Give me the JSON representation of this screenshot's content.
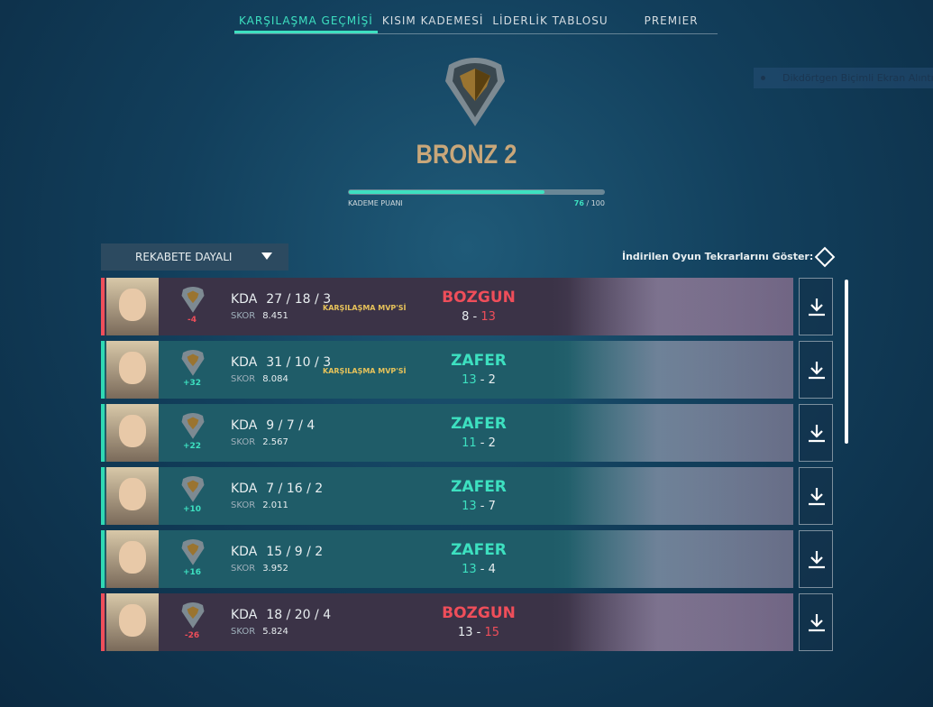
{
  "tabs": [
    {
      "label": "KARŞILAŞMA GEÇMİŞİ",
      "active": true
    },
    {
      "label": "KISIM KADEMESİ"
    },
    {
      "label": "LİDERLİK TABLOSU"
    },
    {
      "label": "PREMIER"
    }
  ],
  "snip_tooltip": "Dikdörtgen Biçimli Ekran Alıntısı",
  "rank": {
    "name": "BRONZ 2",
    "progress_label": "KADEME PUANI",
    "rr": "76",
    "rr_max": "100",
    "progress_pct": 76
  },
  "filter": {
    "label": "REKABETE DAYALI"
  },
  "replays_toggle": {
    "label": "İndirilen Oyun Tekrarlarını Göster:",
    "checked": false
  },
  "colors": {
    "accent": "#3de0c0",
    "loss": "#ef4e5a",
    "rank": "#c9a77a"
  },
  "matches": [
    {
      "result": "BOZGUN",
      "outcome": "loss",
      "rr": "-4",
      "kda_label": "KDA",
      "k": "27",
      "d": "18",
      "a": "3",
      "skor_label": "SKOR",
      "skor": "8.451",
      "mvp": "KARŞILAŞMA MVP'Sİ",
      "team": "8",
      "enemy": "13"
    },
    {
      "result": "ZAFER",
      "outcome": "win",
      "rr": "+32",
      "kda_label": "KDA",
      "k": "31",
      "d": "10",
      "a": "3",
      "skor_label": "SKOR",
      "skor": "8.084",
      "mvp": "KARŞILAŞMA MVP'Sİ",
      "team": "13",
      "enemy": "2"
    },
    {
      "result": "ZAFER",
      "outcome": "win",
      "rr": "+22",
      "kda_label": "KDA",
      "k": "9",
      "d": "7",
      "a": "4",
      "skor_label": "SKOR",
      "skor": "2.567",
      "mvp": "",
      "team": "11",
      "enemy": "2"
    },
    {
      "result": "ZAFER",
      "outcome": "win",
      "rr": "+10",
      "kda_label": "KDA",
      "k": "7",
      "d": "16",
      "a": "2",
      "skor_label": "SKOR",
      "skor": "2.011",
      "mvp": "",
      "team": "13",
      "enemy": "7"
    },
    {
      "result": "ZAFER",
      "outcome": "win",
      "rr": "+16",
      "kda_label": "KDA",
      "k": "15",
      "d": "9",
      "a": "2",
      "skor_label": "SKOR",
      "skor": "3.952",
      "mvp": "",
      "team": "13",
      "enemy": "4"
    },
    {
      "result": "BOZGUN",
      "outcome": "loss",
      "rr": "-26",
      "kda_label": "KDA",
      "k": "18",
      "d": "20",
      "a": "4",
      "skor_label": "SKOR",
      "skor": "5.824",
      "mvp": "",
      "team": "13",
      "enemy": "15"
    }
  ]
}
